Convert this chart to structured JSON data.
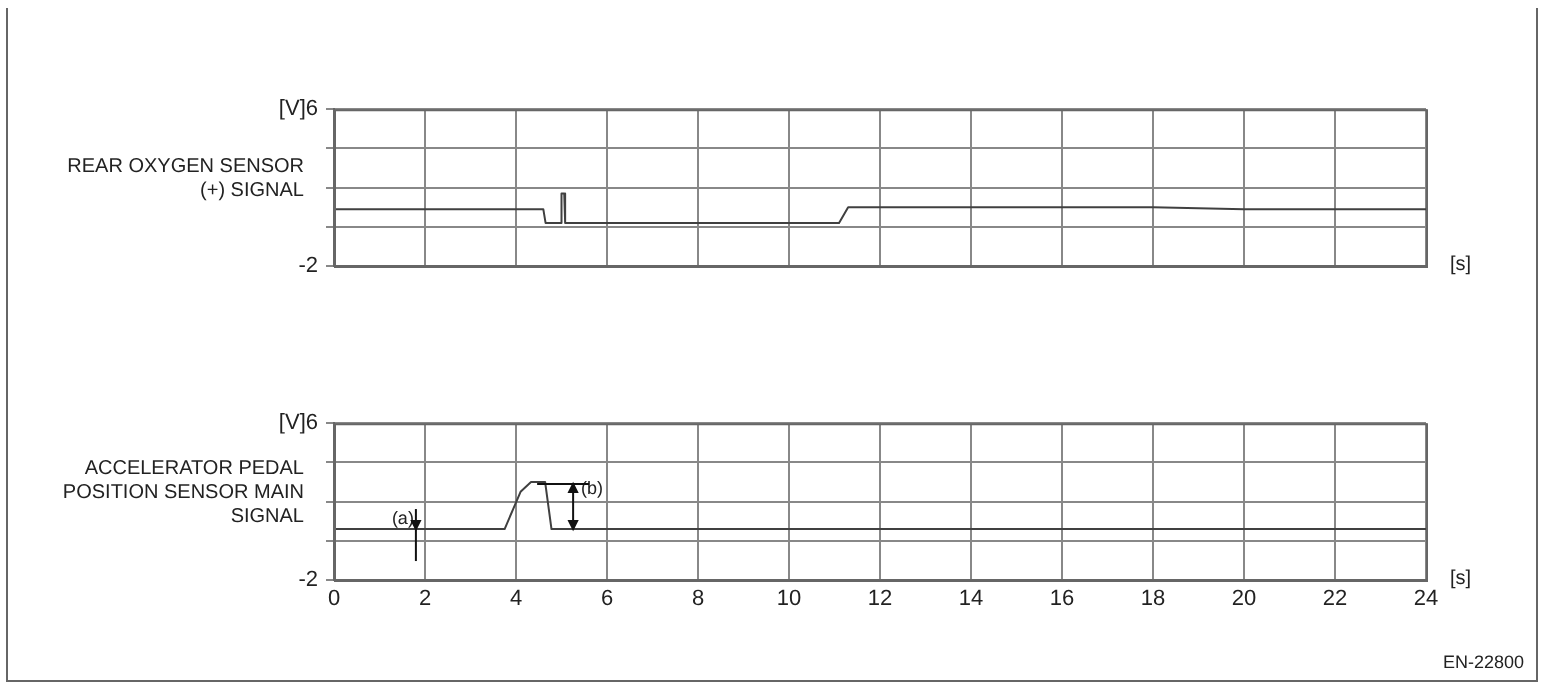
{
  "chart_data": [
    {
      "type": "line",
      "ylabel": "REAR OXYGEN SENSOR (+) SIGNAL",
      "xlabel": "[s]",
      "xlim": [
        0,
        24
      ],
      "xticks": [
        0,
        2,
        4,
        6,
        8,
        10,
        12,
        14,
        16,
        18,
        20,
        22,
        24
      ],
      "ylim": [
        -2,
        6
      ],
      "yticks": [
        {
          "value": 6,
          "label": "[V]6"
        },
        {
          "value": 4,
          "label": null
        },
        {
          "value": 2,
          "label": null
        },
        {
          "value": 0,
          "label": null
        },
        -2
      ],
      "tick_labels": "y",
      "grid": true,
      "marker": "none",
      "line_style": "solid",
      "series": [
        {
          "color": "#404040",
          "x": [
            0,
            4.3,
            4.6,
            4.65,
            4.98,
            5.0,
            5.06,
            5.08,
            6,
            8,
            11.1,
            11.3,
            12,
            14,
            16,
            18,
            20,
            22,
            24
          ],
          "values": [
            0.9,
            0.9,
            0.9,
            0.2,
            0.2,
            1.7,
            1.7,
            0.2,
            0.2,
            0.2,
            0.2,
            1.0,
            1.0,
            1.0,
            1.0,
            1.0,
            0.9,
            0.9,
            0.9
          ]
        }
      ]
    },
    {
      "type": "line",
      "ylabel": "ACCELERATOR PEDAL POSITION SENSOR MAIN SIGNAL",
      "xlabel": "[s]",
      "xlim": [
        0,
        24
      ],
      "xticks": [
        0,
        2,
        4,
        6,
        8,
        10,
        12,
        14,
        16,
        18,
        20,
        22,
        24
      ],
      "ylim": [
        -2,
        6
      ],
      "yticks": [
        {
          "value": 6,
          "label": "[V]6"
        },
        {
          "value": 4,
          "label": null
        },
        {
          "value": 2,
          "label": null
        },
        {
          "value": 0,
          "label": null
        },
        -2
      ],
      "grid": true,
      "marker": "none",
      "line_style": "solid",
      "series": [
        {
          "color": "#404040",
          "x": [
            0,
            3.75,
            4.1,
            4.33,
            4.64,
            4.78,
            6,
            12,
            18,
            24
          ],
          "values": [
            0.6,
            0.6,
            2.5,
            3.0,
            3.0,
            0.6,
            0.6,
            0.6,
            0.6,
            0.6
          ]
        }
      ],
      "annotations": [
        {
          "text": "(a)",
          "x": 1.8,
          "y": 0.6
        },
        {
          "text": "(b)",
          "x": 4.64,
          "y": 3.0
        },
        "EN-22800"
      ]
    }
  ]
}
